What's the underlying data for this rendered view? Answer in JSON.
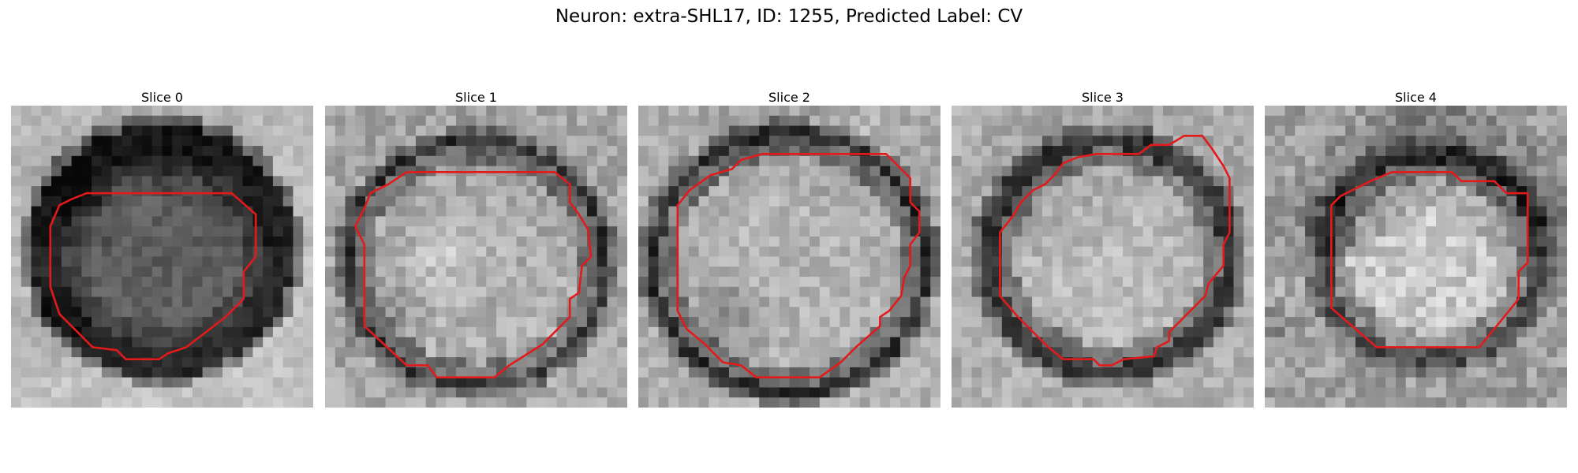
{
  "figure": {
    "title": "Neuron: extra-SHL17, ID: 1255, Predicted Label: CV"
  },
  "contour_color": "#e31a1c",
  "panels": [
    {
      "title": "Slice 0"
    },
    {
      "title": "Slice 1"
    },
    {
      "title": "Slice 2"
    },
    {
      "title": "Slice 3"
    },
    {
      "title": "Slice 4"
    }
  ]
}
